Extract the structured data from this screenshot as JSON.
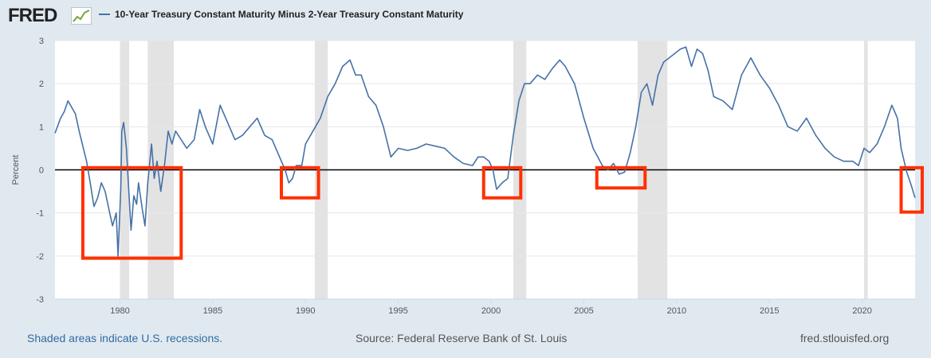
{
  "brand": {
    "logo_text": "FRED"
  },
  "colors": {
    "series": "#4572a7",
    "highlight": "#ff3000",
    "recession": "#e3e3e3"
  },
  "footer": {
    "note": "Shaded areas indicate U.S. recessions.",
    "source": "Source: Federal Reserve Bank of St. Louis",
    "url": "fred.stlouisfed.org"
  },
  "chart_data": {
    "type": "line",
    "title": "10-Year Treasury Constant Maturity Minus 2-Year Treasury Constant Maturity",
    "xlabel": "",
    "ylabel": "Percent",
    "xlim": [
      1976.5,
      2022.85
    ],
    "ylim": [
      -3,
      3
    ],
    "xticks": [
      1980,
      1985,
      1990,
      1995,
      2000,
      2005,
      2010,
      2015,
      2020
    ],
    "xtick_labels": [
      "1980",
      "1985",
      "1990",
      "1995",
      "2000",
      "2005",
      "2010",
      "2015",
      "2020"
    ],
    "yticks": [
      -3,
      -2,
      -1,
      0,
      1,
      2,
      3
    ],
    "ytick_labels": [
      "-3",
      "-2",
      "-1",
      "0",
      "1",
      "2",
      "3"
    ],
    "grid": true,
    "recessions": [
      [
        1980.0,
        1980.5
      ],
      [
        1981.5,
        1982.9
      ],
      [
        1990.5,
        1991.2
      ],
      [
        2001.2,
        2001.9
      ],
      [
        2007.9,
        2009.5
      ],
      [
        2020.1,
        2020.3
      ]
    ],
    "highlight_boxes": [
      {
        "x": [
          1978.0,
          1983.3
        ],
        "y": [
          -2.05,
          0.05
        ]
      },
      {
        "x": [
          1988.7,
          1990.7
        ],
        "y": [
          -0.65,
          0.05
        ]
      },
      {
        "x": [
          1999.6,
          2001.6
        ],
        "y": [
          -0.65,
          0.05
        ]
      },
      {
        "x": [
          2005.7,
          2008.3
        ],
        "y": [
          -0.42,
          0.05
        ]
      },
      {
        "x": [
          2022.1,
          2023.5
        ],
        "y": [
          -0.98,
          0.05
        ]
      }
    ],
    "series": [
      {
        "name": "10-Year Treasury Constant Maturity Minus 2-Year Treasury Constant Maturity",
        "x": [
          1976.5,
          1976.8,
          1977.0,
          1977.2,
          1977.4,
          1977.6,
          1977.8,
          1978.0,
          1978.2,
          1978.4,
          1978.6,
          1978.8,
          1979.0,
          1979.2,
          1979.4,
          1979.6,
          1979.8,
          1979.9,
          1980.05,
          1980.1,
          1980.2,
          1980.35,
          1980.45,
          1980.6,
          1980.75,
          1980.9,
          1981.0,
          1981.2,
          1981.35,
          1981.5,
          1981.7,
          1981.85,
          1982.0,
          1982.2,
          1982.4,
          1982.6,
          1982.8,
          1983.0,
          1983.3,
          1983.6,
          1984.0,
          1984.3,
          1984.6,
          1985.0,
          1985.4,
          1985.8,
          1986.2,
          1986.6,
          1987.0,
          1987.4,
          1987.8,
          1988.2,
          1988.6,
          1988.9,
          1989.1,
          1989.3,
          1989.5,
          1989.8,
          1990.0,
          1990.4,
          1990.8,
          1991.2,
          1991.6,
          1992.0,
          1992.4,
          1992.7,
          1993.0,
          1993.4,
          1993.8,
          1994.2,
          1994.6,
          1995.0,
          1995.5,
          1996.0,
          1996.5,
          1997.0,
          1997.5,
          1998.0,
          1998.5,
          1999.0,
          1999.3,
          1999.6,
          1999.9,
          2000.1,
          2000.3,
          2000.6,
          2000.9,
          2001.2,
          2001.5,
          2001.8,
          2002.1,
          2002.5,
          2002.9,
          2003.3,
          2003.7,
          2004.0,
          2004.5,
          2005.0,
          2005.5,
          2006.0,
          2006.3,
          2006.6,
          2006.9,
          2007.2,
          2007.5,
          2007.8,
          2008.1,
          2008.4,
          2008.7,
          2009.0,
          2009.3,
          2009.6,
          2009.9,
          2010.2,
          2010.5,
          2010.8,
          2011.1,
          2011.4,
          2011.7,
          2012.0,
          2012.5,
          2013.0,
          2013.5,
          2014.0,
          2014.5,
          2015.0,
          2015.5,
          2016.0,
          2016.5,
          2017.0,
          2017.5,
          2018.0,
          2018.5,
          2019.0,
          2019.5,
          2019.8,
          2020.1,
          2020.4,
          2020.8,
          2021.2,
          2021.6,
          2021.9,
          2022.1,
          2022.4,
          2022.6,
          2022.85
        ],
        "values": [
          0.85,
          1.2,
          1.35,
          1.6,
          1.45,
          1.3,
          0.9,
          0.55,
          0.2,
          -0.3,
          -0.85,
          -0.65,
          -0.3,
          -0.5,
          -0.9,
          -1.3,
          -1.0,
          -2.0,
          -0.4,
          0.9,
          1.1,
          0.5,
          -0.3,
          -1.4,
          -0.6,
          -0.8,
          -0.3,
          -0.9,
          -1.3,
          -0.3,
          0.6,
          -0.2,
          0.2,
          -0.5,
          0.1,
          0.9,
          0.6,
          0.9,
          0.7,
          0.5,
          0.7,
          1.4,
          1.0,
          0.6,
          1.5,
          1.1,
          0.7,
          0.8,
          1.0,
          1.2,
          0.8,
          0.7,
          0.3,
          0.0,
          -0.3,
          -0.2,
          0.1,
          0.1,
          0.6,
          0.9,
          1.2,
          1.7,
          2.0,
          2.4,
          2.55,
          2.2,
          2.2,
          1.7,
          1.5,
          1.0,
          0.3,
          0.5,
          0.45,
          0.5,
          0.6,
          0.55,
          0.5,
          0.3,
          0.15,
          0.1,
          0.3,
          0.3,
          0.2,
          0.0,
          -0.45,
          -0.3,
          -0.2,
          0.8,
          1.6,
          2.0,
          2.0,
          2.2,
          2.1,
          2.35,
          2.55,
          2.4,
          2.0,
          1.2,
          0.5,
          0.1,
          0.0,
          0.15,
          -0.1,
          -0.05,
          0.4,
          1.0,
          1.8,
          2.0,
          1.5,
          2.2,
          2.5,
          2.6,
          2.7,
          2.8,
          2.85,
          2.4,
          2.8,
          2.7,
          2.3,
          1.7,
          1.6,
          1.4,
          2.2,
          2.6,
          2.2,
          1.9,
          1.5,
          1.0,
          0.9,
          1.2,
          0.8,
          0.5,
          0.3,
          0.2,
          0.2,
          0.1,
          0.5,
          0.4,
          0.6,
          1.0,
          1.5,
          1.2,
          0.5,
          -0.05,
          -0.3,
          -0.65
        ]
      }
    ]
  }
}
